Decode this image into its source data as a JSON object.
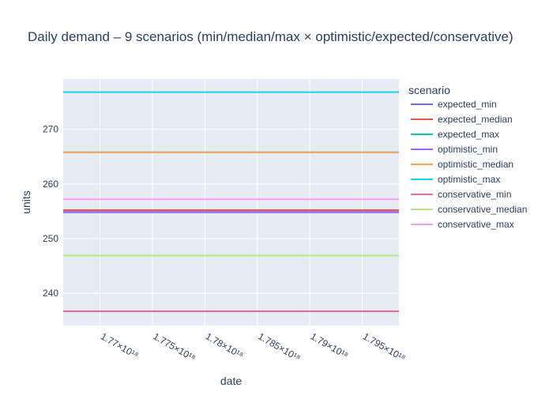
{
  "chart_data": {
    "type": "line",
    "title": "Daily demand – 9 scenarios (min/median/max × optimistic/expected/conservative)",
    "xlabel": "date",
    "ylabel": "units",
    "legend_title": "scenario",
    "legend_position": "right",
    "grid": true,
    "x_tick_labels": [
      "1.77×10¹⁸",
      "1.775×10¹⁸",
      "1.78×10¹⁸",
      "1.785×10¹⁸",
      "1.79×10¹⁸",
      "1.795×10¹⁸"
    ],
    "x_ticks": [
      1.77e+18,
      1.775e+18,
      1.78e+18,
      1.785e+18,
      1.79e+18,
      1.795e+18
    ],
    "xlim": [
      1.7665e+18,
      1.7985e+18
    ],
    "y_ticks": [
      240,
      250,
      260,
      270
    ],
    "ylim": [
      234.1,
      279.2
    ],
    "x": [
      1.7665e+18,
      1.7985e+18
    ],
    "series": [
      {
        "name": "expected_min",
        "color": "#636efa",
        "values": [
          254.8,
          254.8
        ]
      },
      {
        "name": "expected_median",
        "color": "#ef553b",
        "values": [
          255.2,
          255.2
        ]
      },
      {
        "name": "expected_max",
        "color": "#00cc96",
        "values": [
          265.8,
          265.8
        ]
      },
      {
        "name": "optimistic_min",
        "color": "#ab63fa",
        "values": [
          254.9,
          254.9
        ]
      },
      {
        "name": "optimistic_median",
        "color": "#ffa15a",
        "values": [
          265.8,
          265.8
        ]
      },
      {
        "name": "optimistic_max",
        "color": "#19d3f3",
        "values": [
          276.8,
          276.8
        ]
      },
      {
        "name": "conservative_min",
        "color": "#ff6692",
        "values": [
          236.7,
          236.7
        ]
      },
      {
        "name": "conservative_median",
        "color": "#b6e880",
        "values": [
          246.9,
          246.9
        ]
      },
      {
        "name": "conservative_max",
        "color": "#ff97ff",
        "values": [
          257.2,
          257.2
        ]
      }
    ]
  },
  "style": {
    "plot_bg": "#e5ecf6",
    "grid_color": "#ffffff",
    "text_color": "#2a3f5f"
  }
}
